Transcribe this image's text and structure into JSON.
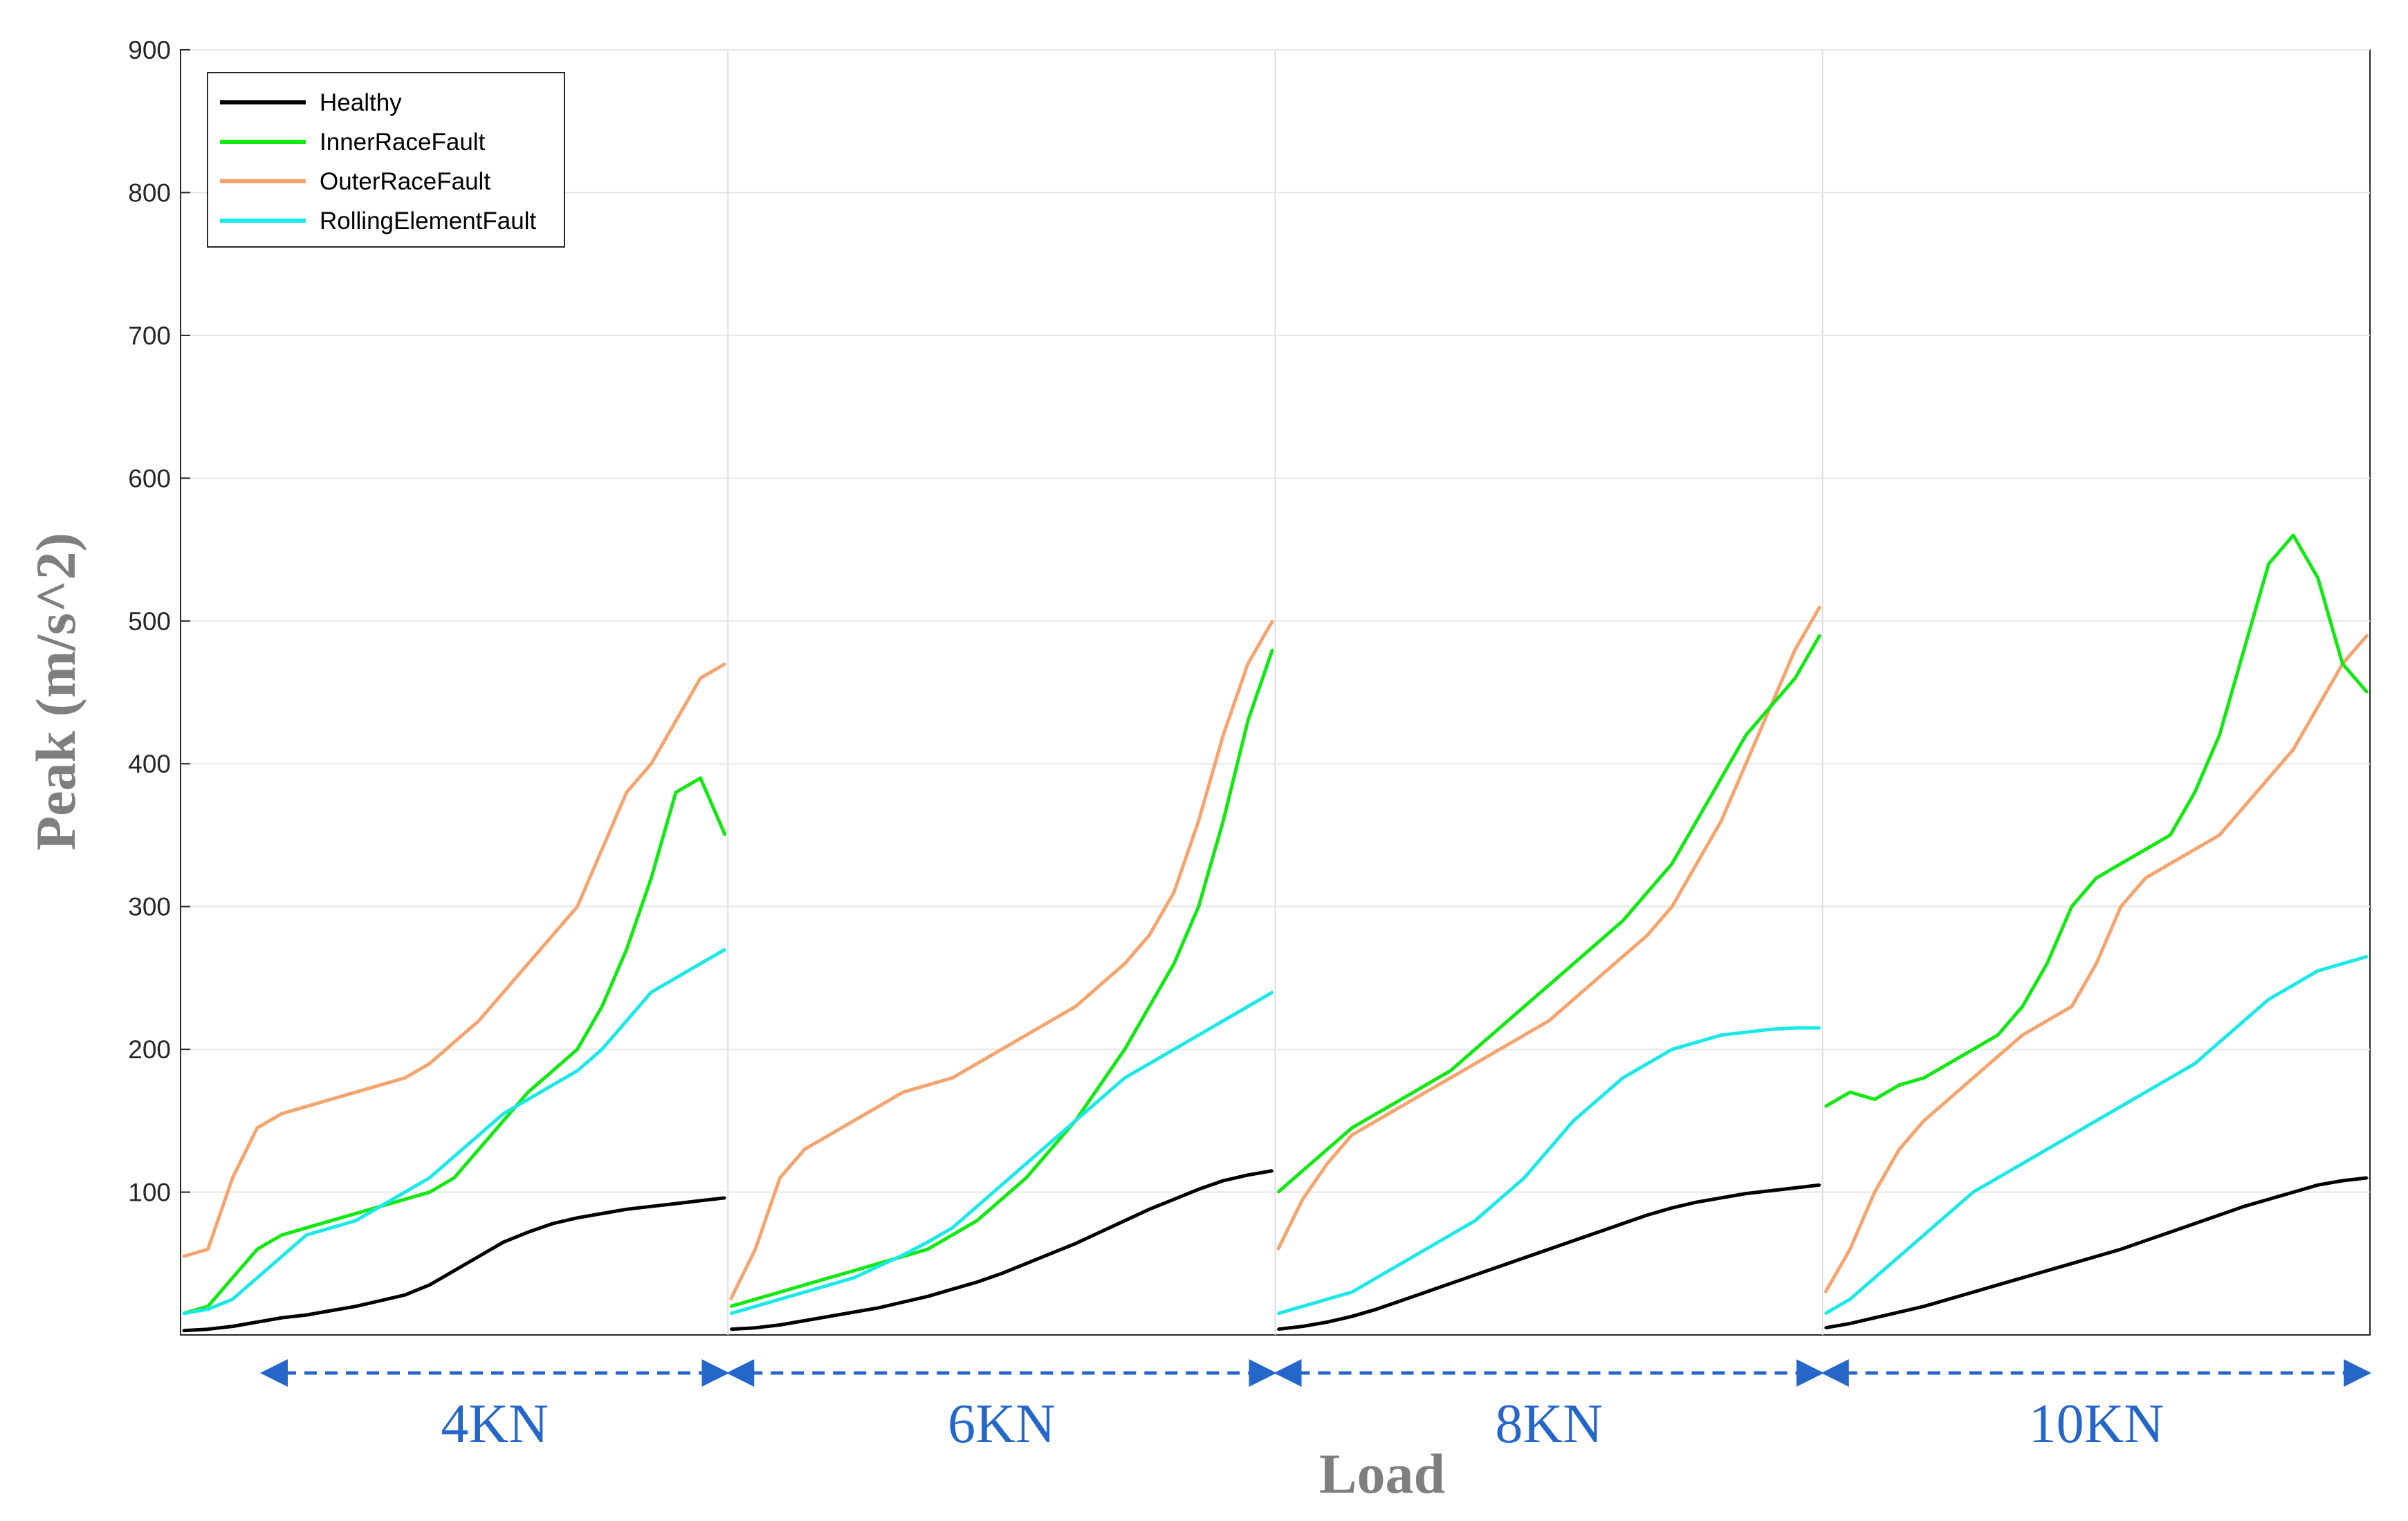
{
  "chart_data": {
    "type": "line",
    "title": "",
    "xlabel": "Load",
    "ylabel": "Peak (m/s^2)",
    "ylim": [
      0,
      900
    ],
    "yticks": [
      100,
      200,
      300,
      400,
      500,
      600,
      700,
      800,
      900
    ],
    "grid": true,
    "legend_position": "top-left",
    "load_groups": [
      "4KN",
      "6KN",
      "8KN",
      "10KN"
    ],
    "samples_per_group": 23,
    "series": [
      {
        "name": "Healthy",
        "color": "#000000",
        "values": [
          3,
          4,
          6,
          9,
          12,
          14,
          17,
          20,
          24,
          28,
          35,
          45,
          55,
          65,
          72,
          78,
          82,
          85,
          88,
          90,
          92,
          94,
          96,
          4,
          5,
          7,
          10,
          13,
          16,
          19,
          23,
          27,
          32,
          37,
          43,
          50,
          57,
          64,
          72,
          80,
          88,
          95,
          102,
          108,
          112,
          115,
          4,
          6,
          9,
          13,
          18,
          24,
          30,
          36,
          42,
          48,
          54,
          60,
          66,
          72,
          78,
          84,
          89,
          93,
          96,
          99,
          101,
          103,
          105,
          5,
          8,
          12,
          16,
          20,
          25,
          30,
          35,
          40,
          45,
          50,
          55,
          60,
          66,
          72,
          78,
          84,
          90,
          95,
          100,
          105,
          108,
          110
        ]
      },
      {
        "name": "InnerRaceFault",
        "color": "#12e812",
        "values": [
          15,
          20,
          40,
          60,
          70,
          75,
          80,
          85,
          90,
          95,
          100,
          110,
          130,
          150,
          170,
          185,
          200,
          230,
          270,
          320,
          380,
          390,
          350,
          20,
          25,
          30,
          35,
          40,
          45,
          50,
          55,
          60,
          70,
          80,
          95,
          110,
          130,
          150,
          175,
          200,
          230,
          260,
          300,
          360,
          430,
          480,
          100,
          115,
          130,
          145,
          155,
          165,
          175,
          185,
          200,
          215,
          230,
          245,
          260,
          275,
          290,
          310,
          330,
          360,
          390,
          420,
          440,
          460,
          490,
          160,
          170,
          165,
          175,
          180,
          190,
          200,
          210,
          230,
          260,
          300,
          320,
          330,
          340,
          350,
          380,
          420,
          480,
          540,
          560,
          530,
          470,
          450
        ]
      },
      {
        "name": "OuterRaceFault",
        "color": "#f5a46e",
        "values": [
          55,
          60,
          110,
          145,
          155,
          160,
          165,
          170,
          175,
          180,
          190,
          205,
          220,
          240,
          260,
          280,
          300,
          340,
          380,
          400,
          430,
          460,
          470,
          25,
          60,
          110,
          130,
          140,
          150,
          160,
          170,
          175,
          180,
          190,
          200,
          210,
          220,
          230,
          245,
          260,
          280,
          310,
          360,
          420,
          470,
          500,
          60,
          95,
          120,
          140,
          150,
          160,
          170,
          180,
          190,
          200,
          210,
          220,
          235,
          250,
          265,
          280,
          300,
          330,
          360,
          400,
          440,
          480,
          510,
          30,
          60,
          100,
          130,
          150,
          165,
          180,
          195,
          210,
          220,
          230,
          260,
          300,
          320,
          330,
          340,
          350,
          370,
          390,
          410,
          440,
          470,
          490
        ]
      },
      {
        "name": "RollingElementFault",
        "color": "#1de8e8",
        "values": [
          15,
          18,
          25,
          40,
          55,
          70,
          75,
          80,
          90,
          100,
          110,
          125,
          140,
          155,
          165,
          175,
          185,
          200,
          220,
          240,
          250,
          260,
          270,
          15,
          20,
          25,
          30,
          35,
          40,
          48,
          56,
          65,
          75,
          90,
          105,
          120,
          135,
          150,
          165,
          180,
          190,
          200,
          210,
          220,
          230,
          240,
          15,
          20,
          25,
          30,
          40,
          50,
          60,
          70,
          80,
          95,
          110,
          130,
          150,
          165,
          180,
          190,
          200,
          205,
          210,
          212,
          214,
          215,
          215,
          15,
          25,
          40,
          55,
          70,
          85,
          100,
          110,
          120,
          130,
          140,
          150,
          160,
          170,
          180,
          190,
          205,
          220,
          235,
          245,
          255,
          260,
          265
        ]
      }
    ]
  }
}
